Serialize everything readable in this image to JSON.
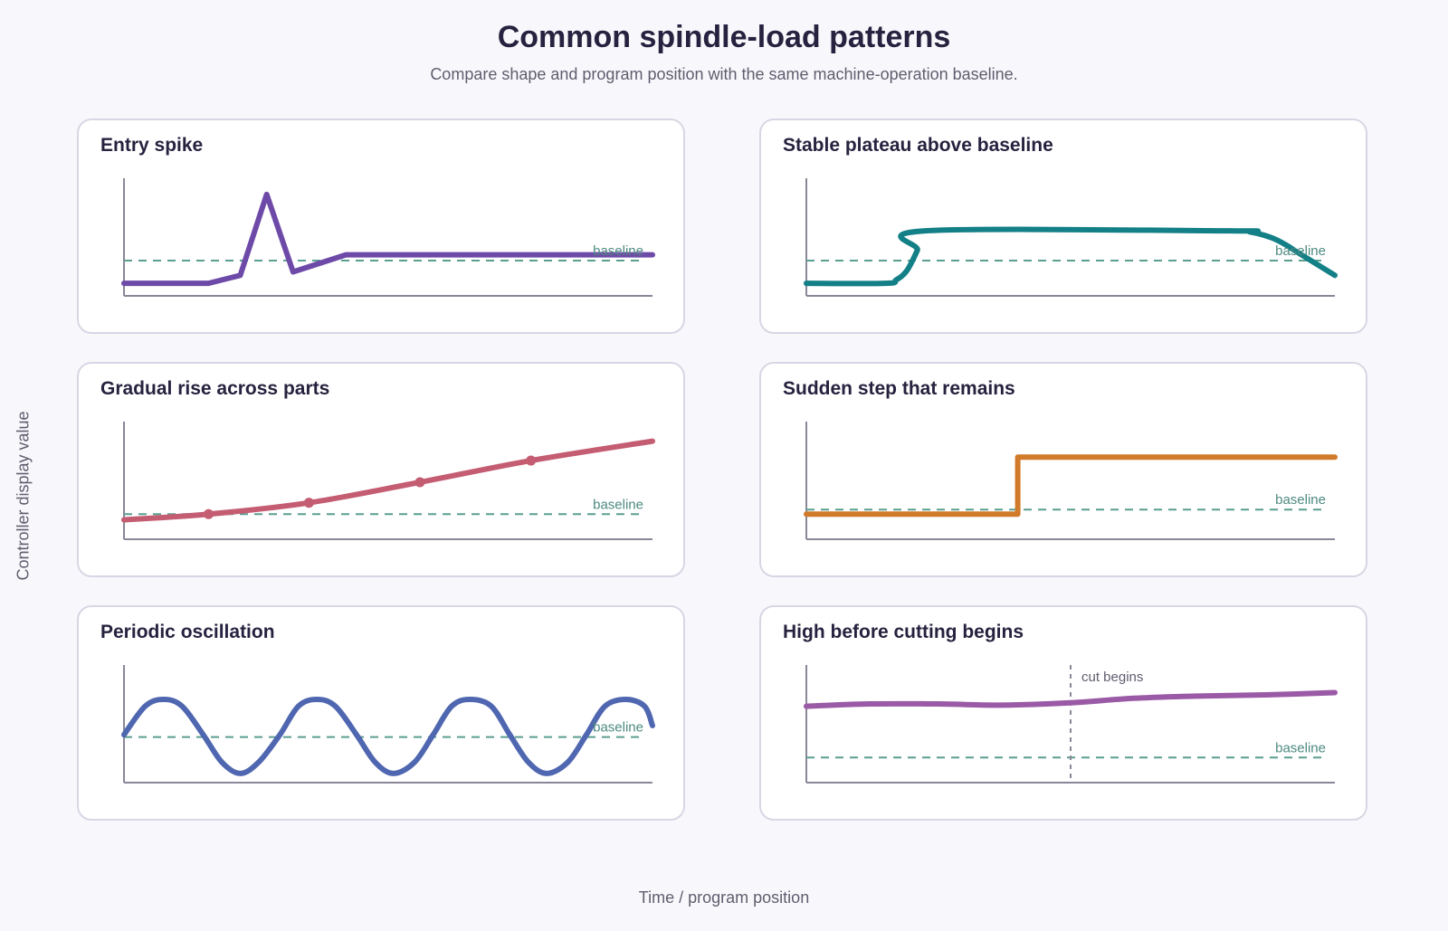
{
  "page": {
    "title": "Common spindle-load patterns",
    "subtitle": "Compare shape and program position with the same machine-operation baseline.",
    "y_axis_label": "Controller display value",
    "x_axis_label": "Time / program position"
  },
  "chart_data": [
    {
      "type": "line",
      "title": "Entry spike",
      "color": "#6e4aa8",
      "curve": "linear",
      "xlim": [
        0,
        100
      ],
      "ylim": [
        0,
        100
      ],
      "baseline": 31,
      "baseline_label": "baseline",
      "x": [
        0,
        16,
        22,
        27,
        32,
        42,
        100
      ],
      "y": [
        11,
        11,
        18,
        89,
        21,
        36,
        36
      ]
    },
    {
      "type": "line",
      "title": "Stable plateau above baseline",
      "color": "#137f86",
      "curve": "smooth",
      "xlim": [
        0,
        100
      ],
      "ylim": [
        0,
        100
      ],
      "baseline": 31,
      "baseline_label": "baseline",
      "x": [
        0,
        15,
        17,
        19,
        21,
        22.5,
        80,
        84,
        88,
        91,
        93,
        100
      ],
      "y": [
        11,
        11,
        14,
        22,
        40,
        57,
        57,
        56,
        51,
        44,
        38,
        18
      ]
    },
    {
      "type": "line",
      "title": "Gradual rise across parts",
      "color": "#c45c72",
      "curve": "smooth",
      "xlim": [
        0,
        100
      ],
      "ylim": [
        0,
        100
      ],
      "baseline": 22,
      "baseline_label": "baseline",
      "x": [
        0,
        16,
        35,
        56,
        77,
        100
      ],
      "y": [
        17,
        22,
        32,
        50,
        69,
        86
      ],
      "markers": [
        16,
        35,
        56,
        77
      ]
    },
    {
      "type": "line",
      "title": "Sudden step that remains",
      "color": "#d07a2a",
      "curve": "linear",
      "xlim": [
        0,
        100
      ],
      "ylim": [
        0,
        100
      ],
      "baseline": 26,
      "baseline_label": "baseline",
      "x": [
        0,
        40,
        40,
        100
      ],
      "y": [
        22,
        22,
        72,
        72
      ]
    },
    {
      "type": "line",
      "title": "Periodic oscillation",
      "color": "#4f66b0",
      "curve": "smooth",
      "xlim": [
        0,
        100
      ],
      "ylim": [
        0,
        100
      ],
      "baseline": 40,
      "baseline_label": "baseline",
      "x": [
        0,
        4,
        7.5,
        11,
        15,
        18.5,
        22,
        25.5,
        29.5,
        33,
        36.5,
        40,
        44,
        47.5,
        51,
        55,
        58.5,
        62,
        65.5,
        69.5,
        73,
        76.5,
        80,
        84,
        87.5,
        91,
        95,
        98.5,
        100
      ],
      "y": [
        42,
        67,
        73,
        67,
        42,
        18,
        8,
        18,
        42,
        67,
        73,
        67,
        42,
        18,
        8,
        18,
        42,
        67,
        73,
        67,
        42,
        18,
        8,
        18,
        42,
        67,
        73,
        67,
        50
      ]
    },
    {
      "type": "line",
      "title": "High before cutting begins",
      "color": "#9a5aa6",
      "curve": "smooth",
      "xlim": [
        0,
        100
      ],
      "ylim": [
        0,
        100
      ],
      "baseline": 22,
      "baseline_label": "baseline",
      "x": [
        0,
        12,
        25,
        37,
        50,
        62,
        75,
        87,
        100
      ],
      "y": [
        67,
        69,
        69,
        68,
        70,
        74,
        76,
        77,
        79
      ],
      "vline": 50,
      "vline_label": "cut begins"
    }
  ]
}
